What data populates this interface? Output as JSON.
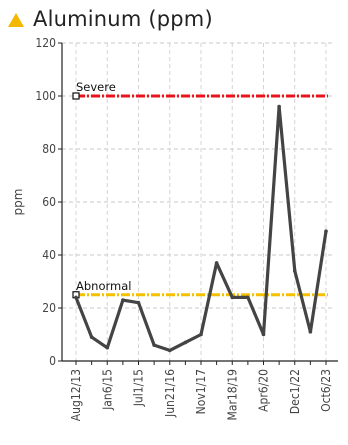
{
  "header": {
    "title": "Aluminum (ppm)",
    "icon": "warning-triangle-icon",
    "icon_color": "#f5b800"
  },
  "chart_data": {
    "type": "line",
    "ylabel": "ppm",
    "ylim": [
      0,
      120
    ],
    "yticks": [
      0,
      20,
      40,
      60,
      80,
      100,
      120
    ],
    "grid": true,
    "x_tick_labels": [
      "Aug12/13",
      "Jan6/15",
      "Jul1/15",
      "Jun21/16",
      "Nov1/17",
      "Mar18/19",
      "Apr6/20",
      "Dec1/22",
      "Oct6/23"
    ],
    "series": [
      {
        "color": "#444444",
        "values": [
          24,
          9,
          5,
          23,
          22,
          6,
          4,
          7,
          10,
          37,
          24,
          24,
          10,
          96,
          34,
          11,
          49
        ]
      }
    ],
    "reference_lines": [
      {
        "label": "Severe",
        "value": 100,
        "color": "#e8141c"
      },
      {
        "label": "Abnormal",
        "value": 25,
        "color": "#f5c000"
      }
    ]
  }
}
